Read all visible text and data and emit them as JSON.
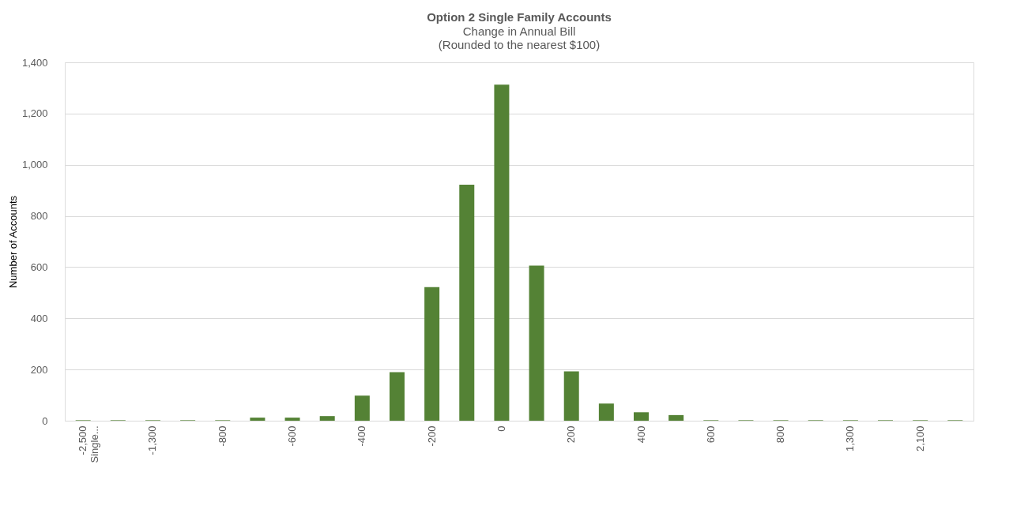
{
  "chart_data": {
    "type": "bar",
    "title": "Option 2 Single Family Accounts",
    "subtitle": [
      "Change in Annual Bill",
      "(Rounded to the nearest $100)"
    ],
    "ylabel": "Number of Accounts",
    "categories": [
      "-2,500\nSingle...",
      null,
      "-1,300",
      null,
      "-800",
      null,
      "-600",
      null,
      "-400",
      null,
      "-200",
      null,
      "0",
      null,
      "200",
      null,
      "400",
      null,
      "600",
      null,
      "800",
      null,
      "1,300",
      null,
      "2,100",
      null
    ],
    "values": [
      2,
      2,
      2,
      2,
      2,
      12,
      12,
      18,
      98,
      190,
      522,
      922,
      1313,
      606,
      193,
      67,
      33,
      22,
      2,
      2,
      2,
      2,
      2,
      2,
      2,
      2
    ],
    "color": "#548235",
    "ylim": [
      0,
      1400
    ],
    "yticks": [
      0,
      200,
      400,
      600,
      800,
      {
        "value": 1000,
        "label": "1,000"
      },
      {
        "value": 1200,
        "label": "1,200"
      },
      {
        "value": 1400,
        "label": "1,400"
      }
    ],
    "grid": "y"
  }
}
